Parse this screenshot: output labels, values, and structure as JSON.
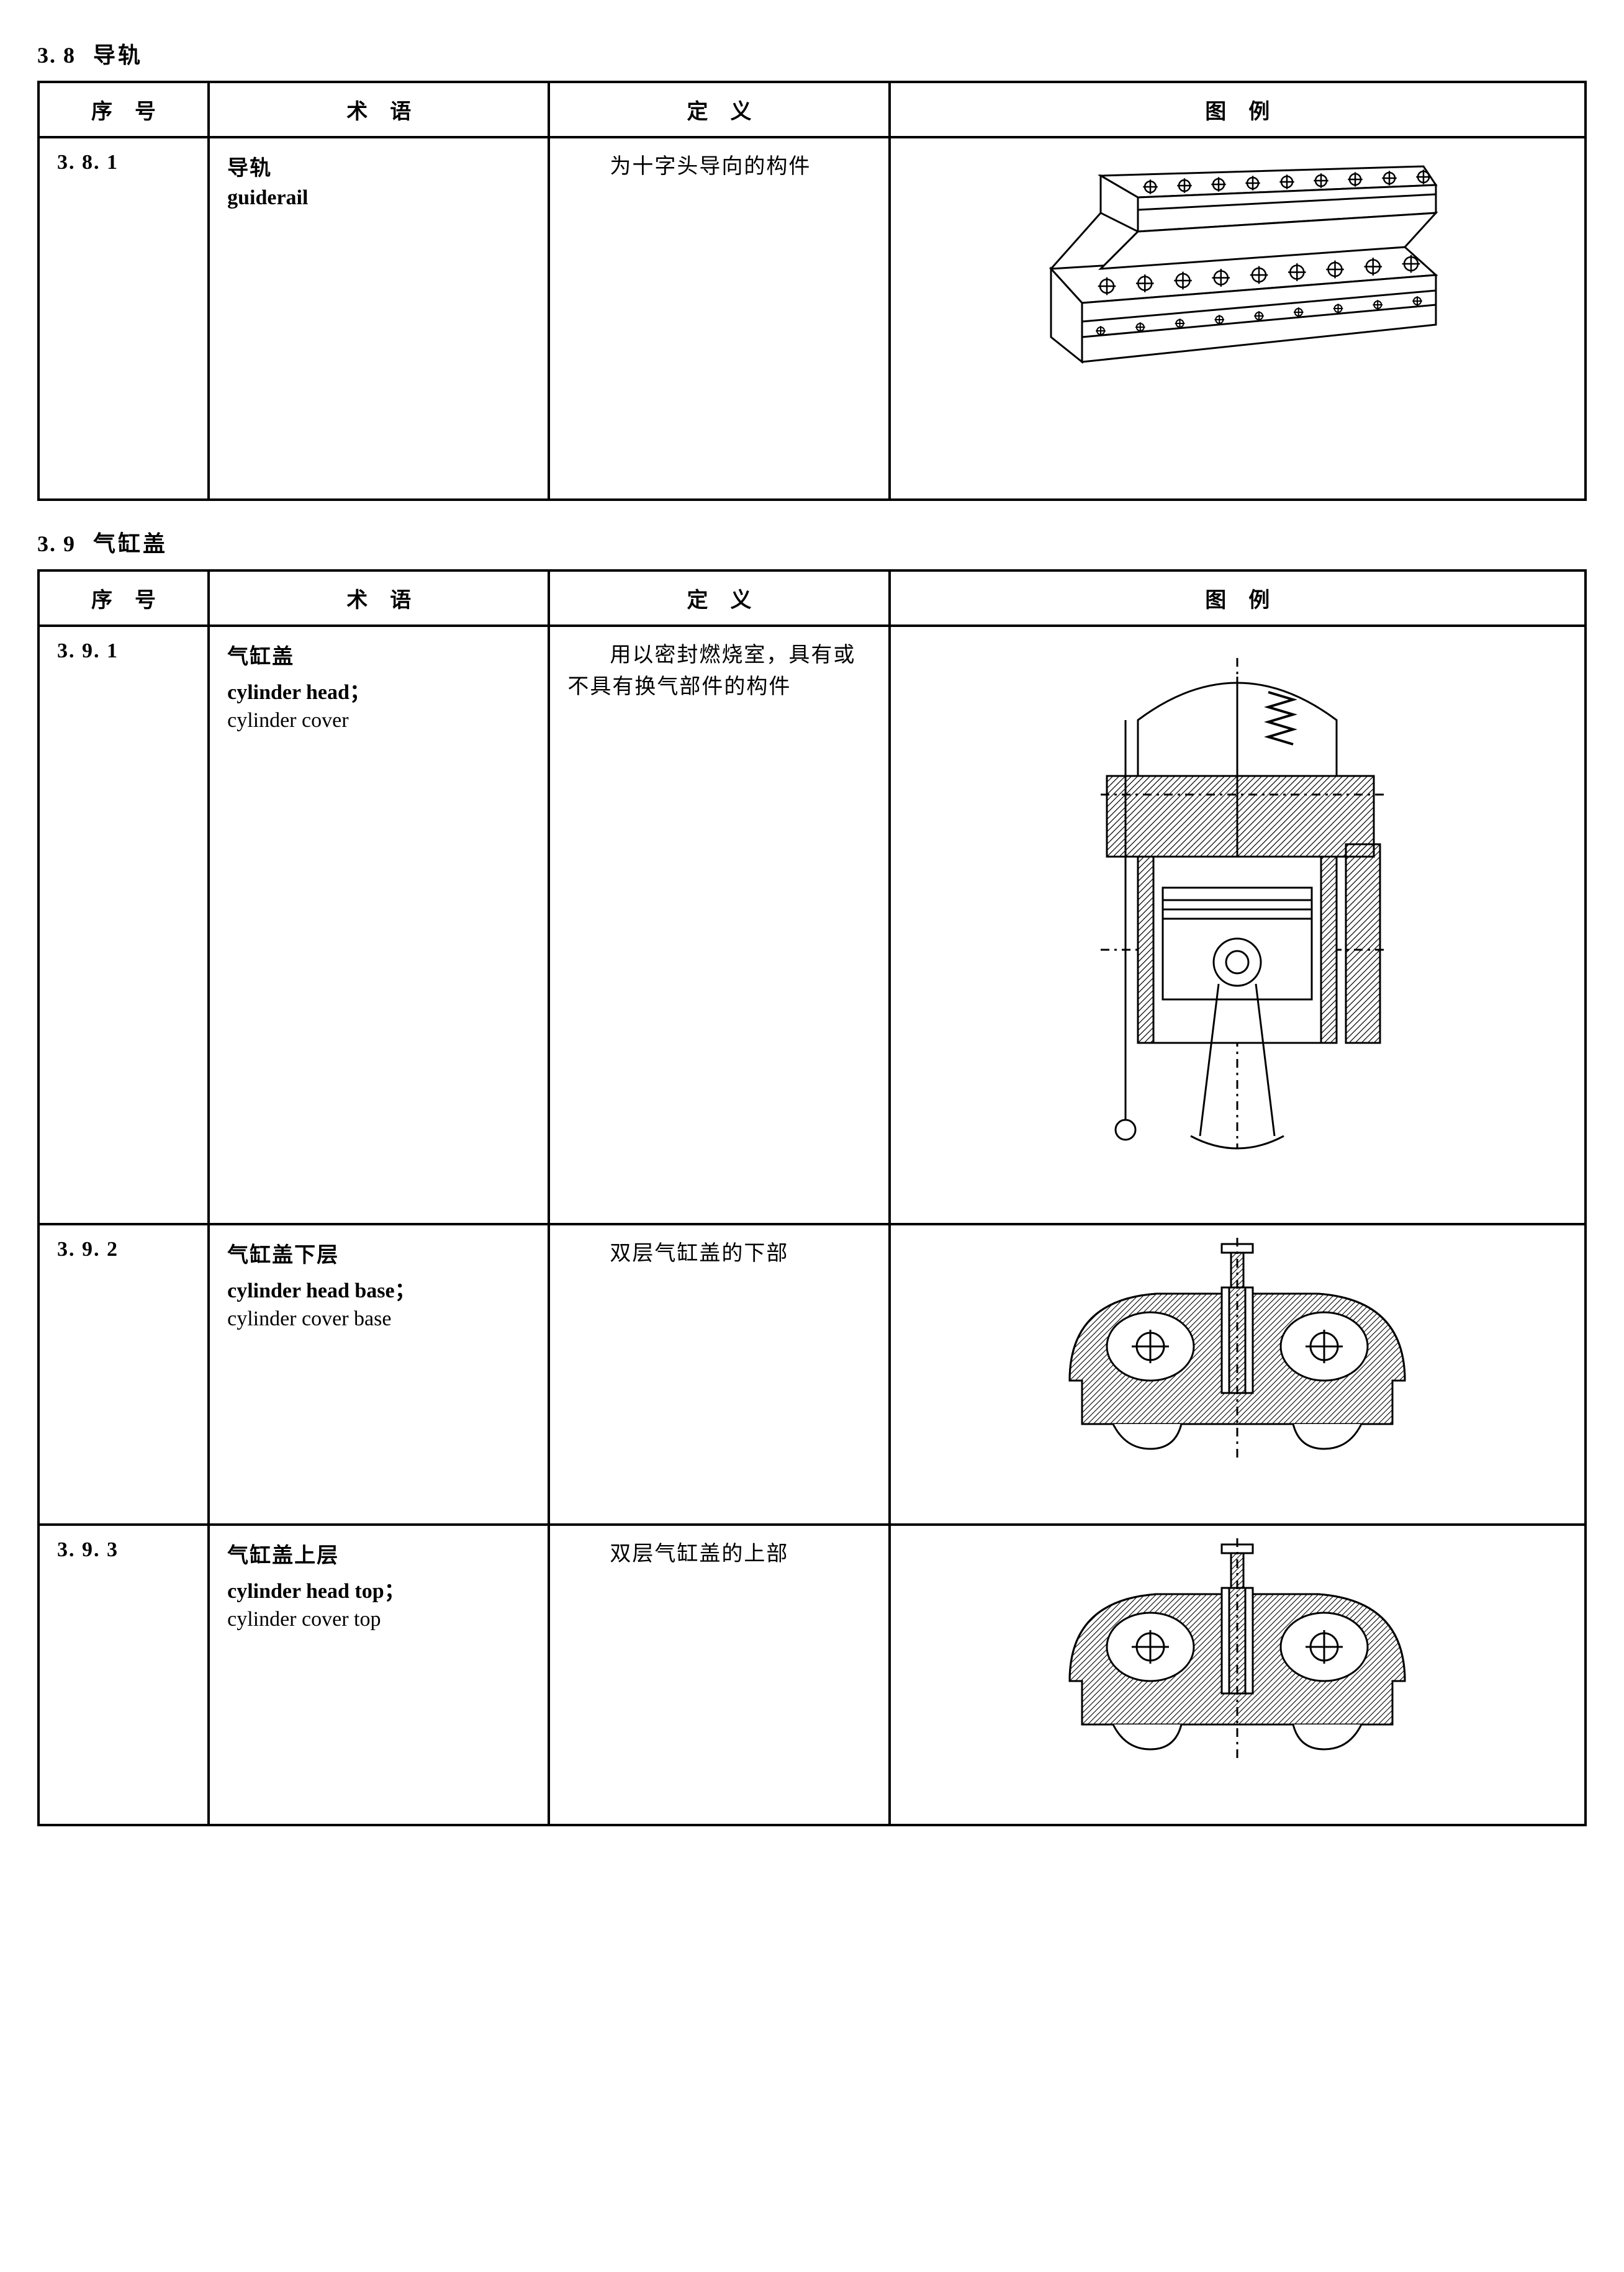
{
  "page": {
    "bg": "#ffffff",
    "text": "#000000",
    "stroke": "#000000",
    "hatch": "#000000"
  },
  "sections": [
    {
      "num": "3. 8",
      "title": "导轨",
      "headers": [
        "序号",
        "术语",
        "定义",
        "图例"
      ],
      "rows": [
        {
          "id": "3. 8. 1",
          "term_cn": "导轨",
          "term_en_bold": "guiderail",
          "term_en_normal": "",
          "def": "为十字头导向的构件",
          "fig": "guiderail",
          "fig_height": 540
        }
      ]
    },
    {
      "num": "3. 9",
      "title": "气缸盖",
      "headers": [
        "序号",
        "术语",
        "定义",
        "图例"
      ],
      "rows": [
        {
          "id": "3. 9. 1",
          "term_cn": "气缸盖",
          "term_en_bold": "cylinder head；",
          "term_en_normal": "cylinder cover",
          "def": "用以密封燃烧室，具有或不具有换气部件的构件",
          "fig": "cylinder_head",
          "fig_height": 920
        },
        {
          "id": "3. 9. 2",
          "term_cn": "气缸盖下层",
          "term_en_bold": "cylinder head base；",
          "term_en_normal": "cylinder cover base",
          "def": "双层气缸盖的下部",
          "fig": "cylinder_head_base",
          "fig_height": 440
        },
        {
          "id": "3. 9. 3",
          "term_cn": "气缸盖上层",
          "term_en_bold": "cylinder head top；",
          "term_en_normal": "cylinder cover top",
          "def": "双层气缸盖的上部",
          "fig": "cylinder_head_top",
          "fig_height": 440
        }
      ]
    }
  ],
  "figures": {
    "guiderail": {
      "bolt_count": 9
    },
    "cylinder_head": {},
    "cylinder_head_base": {},
    "cylinder_head_top": {}
  }
}
